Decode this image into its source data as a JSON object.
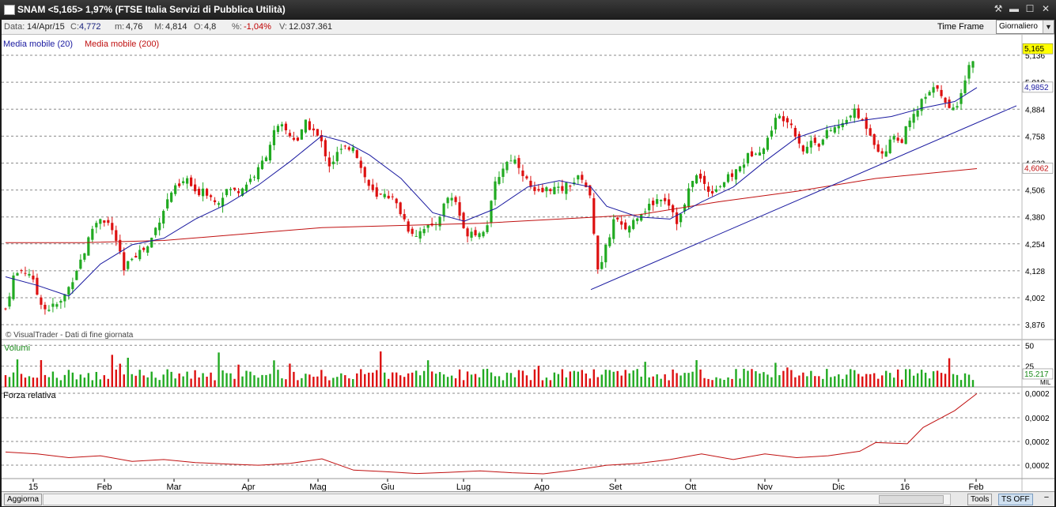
{
  "window": {
    "title": "SNAM <5,165> 1,97%  (FTSE Italia Servizi di Pubblica Utilità)",
    "buttons": {
      "tools": "⚒",
      "minimize": "▬",
      "maximize": "☐",
      "close": "✕"
    }
  },
  "info": {
    "data_label": "Data:",
    "data_value": "14/Apr/15",
    "c_label": "C:",
    "c_value": "4,772",
    "m_label": "m:",
    "m_value": "4,76",
    "M_label": "M:",
    "M_value": "4,814",
    "o_label": "O:",
    "o_value": "4,8",
    "pct_label": "%:",
    "pct_value": "-1,04%",
    "v_label": "V:",
    "v_value": "12.037.361",
    "timeframe_label": "Time Frame",
    "timeframe_value": "Giornaliero"
  },
  "legend": {
    "ma20": "Media mobile (20)",
    "ma200": "Media mobile (200)",
    "credit": "© VisualTrader - Dati di fine giornata"
  },
  "panels": {
    "volume_title": "Volumi",
    "rs_title": "Forza relativa"
  },
  "badges": {
    "last": "5,165",
    "ma20": "4,9852",
    "ma200": "4,6062",
    "vol": "15.217",
    "vol_unit": "MIL"
  },
  "bottom": {
    "refresh": "Aggiorna",
    "tools": "Tools",
    "ts": "TS OFF",
    "minus": "−"
  },
  "colors": {
    "up": "#22aa22",
    "down": "#dd1111",
    "ma20": "#1a1aa0",
    "ma200": "#c01010",
    "trend": "#1a1aa0",
    "rs": "#c01010"
  },
  "chart_data": {
    "type": "candlestick",
    "price_axis": {
      "ticks": [
        "5,136",
        "5,010",
        "4,884",
        "4,758",
        "4,632",
        "4,506",
        "4,380",
        "4,254",
        "4,128",
        "4,002",
        "3,876"
      ],
      "range": [
        3.81,
        5.21
      ]
    },
    "volume_axis": {
      "ticks": [
        "50",
        "25"
      ]
    },
    "rs_axis": {
      "ticks": [
        "0,0002",
        "0,0002",
        "0,0002",
        "0,0002"
      ]
    },
    "x_labels": [
      "15",
      "Feb",
      "Mar",
      "Apr",
      "Mag",
      "Giu",
      "Lug",
      "Ago",
      "Set",
      "Ott",
      "Nov",
      "Dic",
      "16",
      "Feb"
    ],
    "series": {
      "price_close": [
        [
          0,
          3.95
        ],
        [
          10,
          4.1
        ],
        [
          20,
          4.13
        ],
        [
          30,
          4.12
        ],
        [
          40,
          4.02
        ],
        [
          50,
          3.95
        ],
        [
          60,
          3.96
        ],
        [
          70,
          3.98
        ],
        [
          80,
          4.05
        ],
        [
          90,
          4.14
        ],
        [
          100,
          4.22
        ],
        [
          110,
          4.33
        ],
        [
          120,
          4.38
        ],
        [
          130,
          4.35
        ],
        [
          140,
          4.27
        ],
        [
          150,
          4.12
        ],
        [
          160,
          4.2
        ],
        [
          170,
          4.22
        ],
        [
          180,
          4.24
        ],
        [
          190,
          4.33
        ],
        [
          200,
          4.42
        ],
        [
          210,
          4.5
        ],
        [
          220,
          4.52
        ],
        [
          230,
          4.56
        ],
        [
          240,
          4.48
        ],
        [
          250,
          4.52
        ],
        [
          260,
          4.47
        ],
        [
          270,
          4.46
        ],
        [
          280,
          4.51
        ],
        [
          290,
          4.5
        ],
        [
          300,
          4.52
        ],
        [
          310,
          4.56
        ],
        [
          320,
          4.6
        ],
        [
          330,
          4.68
        ],
        [
          340,
          4.78
        ],
        [
          350,
          4.8
        ],
        [
          360,
          4.76
        ],
        [
          370,
          4.74
        ],
        [
          380,
          4.82
        ],
        [
          390,
          4.78
        ],
        [
          400,
          4.72
        ],
        [
          410,
          4.62
        ],
        [
          420,
          4.68
        ],
        [
          430,
          4.7
        ],
        [
          440,
          4.72
        ],
        [
          450,
          4.6
        ],
        [
          460,
          4.52
        ],
        [
          470,
          4.46
        ],
        [
          480,
          4.5
        ],
        [
          490,
          4.46
        ],
        [
          500,
          4.4
        ],
        [
          510,
          4.32
        ],
        [
          520,
          4.3
        ],
        [
          530,
          4.34
        ],
        [
          540,
          4.32
        ],
        [
          550,
          4.4
        ],
        [
          560,
          4.48
        ],
        [
          570,
          4.45
        ],
        [
          580,
          4.3
        ],
        [
          590,
          4.32
        ],
        [
          600,
          4.3
        ],
        [
          610,
          4.36
        ],
        [
          620,
          4.55
        ],
        [
          630,
          4.62
        ],
        [
          640,
          4.66
        ],
        [
          650,
          4.62
        ],
        [
          660,
          4.54
        ],
        [
          670,
          4.48
        ],
        [
          680,
          4.5
        ],
        [
          690,
          4.52
        ],
        [
          700,
          4.5
        ],
        [
          710,
          4.53
        ],
        [
          720,
          4.55
        ],
        [
          730,
          4.57
        ],
        [
          740,
          4.45
        ],
        [
          750,
          4.1
        ],
        [
          760,
          4.25
        ],
        [
          770,
          4.38
        ],
        [
          780,
          4.32
        ],
        [
          790,
          4.34
        ],
        [
          800,
          4.4
        ],
        [
          810,
          4.42
        ],
        [
          820,
          4.45
        ],
        [
          830,
          4.48
        ],
        [
          840,
          4.44
        ],
        [
          850,
          4.35
        ],
        [
          860,
          4.45
        ],
        [
          870,
          4.58
        ],
        [
          880,
          4.55
        ],
        [
          890,
          4.5
        ],
        [
          900,
          4.52
        ],
        [
          910,
          4.55
        ],
        [
          920,
          4.58
        ],
        [
          930,
          4.62
        ],
        [
          940,
          4.67
        ],
        [
          950,
          4.7
        ],
        [
          960,
          4.7
        ],
        [
          970,
          4.82
        ],
        [
          980,
          4.85
        ],
        [
          990,
          4.84
        ],
        [
          1000,
          4.76
        ],
        [
          1010,
          4.68
        ],
        [
          1020,
          4.75
        ],
        [
          1030,
          4.72
        ],
        [
          1040,
          4.78
        ],
        [
          1050,
          4.8
        ],
        [
          1060,
          4.81
        ],
        [
          1070,
          4.88
        ],
        [
          1080,
          4.84
        ],
        [
          1090,
          4.8
        ],
        [
          1100,
          4.72
        ],
        [
          1110,
          4.65
        ],
        [
          1120,
          4.78
        ],
        [
          1130,
          4.72
        ],
        [
          1140,
          4.8
        ],
        [
          1150,
          4.86
        ],
        [
          1160,
          4.93
        ],
        [
          1170,
          4.96
        ],
        [
          1180,
          5.0
        ],
        [
          1190,
          4.88
        ],
        [
          1200,
          4.88
        ],
        [
          1210,
          5.0
        ],
        [
          1220,
          5.1
        ],
        [
          1228,
          5.165
        ]
      ],
      "ma20": [
        [
          0,
          4.1
        ],
        [
          40,
          4.06
        ],
        [
          80,
          4.01
        ],
        [
          120,
          4.16
        ],
        [
          160,
          4.25
        ],
        [
          200,
          4.28
        ],
        [
          240,
          4.37
        ],
        [
          280,
          4.44
        ],
        [
          320,
          4.53
        ],
        [
          360,
          4.64
        ],
        [
          400,
          4.76
        ],
        [
          430,
          4.73
        ],
        [
          460,
          4.67
        ],
        [
          500,
          4.56
        ],
        [
          540,
          4.4
        ],
        [
          580,
          4.36
        ],
        [
          620,
          4.42
        ],
        [
          660,
          4.52
        ],
        [
          700,
          4.55
        ],
        [
          740,
          4.52
        ],
        [
          760,
          4.43
        ],
        [
          800,
          4.38
        ],
        [
          840,
          4.37
        ],
        [
          880,
          4.45
        ],
        [
          920,
          4.52
        ],
        [
          960,
          4.64
        ],
        [
          1000,
          4.75
        ],
        [
          1040,
          4.8
        ],
        [
          1080,
          4.83
        ],
        [
          1120,
          4.85
        ],
        [
          1160,
          4.89
        ],
        [
          1200,
          4.92
        ],
        [
          1228,
          4.985
        ]
      ],
      "ma200": [
        [
          0,
          4.26
        ],
        [
          100,
          4.26
        ],
        [
          200,
          4.27
        ],
        [
          300,
          4.3
        ],
        [
          400,
          4.33
        ],
        [
          500,
          4.34
        ],
        [
          600,
          4.35
        ],
        [
          700,
          4.37
        ],
        [
          800,
          4.39
        ],
        [
          900,
          4.45
        ],
        [
          1000,
          4.5
        ],
        [
          1100,
          4.56
        ],
        [
          1228,
          4.606
        ]
      ],
      "trend_line": [
        [
          740,
          4.04
        ],
        [
          1278,
          4.9
        ]
      ],
      "relative_strength_pct": [
        [
          0,
          0.6
        ],
        [
          40,
          0.55
        ],
        [
          80,
          0.45
        ],
        [
          120,
          0.5
        ],
        [
          160,
          0.35
        ],
        [
          200,
          0.4
        ],
        [
          240,
          0.32
        ],
        [
          280,
          0.28
        ],
        [
          320,
          0.25
        ],
        [
          360,
          0.3
        ],
        [
          400,
          0.42
        ],
        [
          440,
          0.12
        ],
        [
          480,
          0.08
        ],
        [
          520,
          0.03
        ],
        [
          560,
          0.06
        ],
        [
          600,
          0.1
        ],
        [
          640,
          0.05
        ],
        [
          680,
          0.02
        ],
        [
          720,
          0.12
        ],
        [
          760,
          0.25
        ],
        [
          800,
          0.3
        ],
        [
          840,
          0.4
        ],
        [
          880,
          0.55
        ],
        [
          920,
          0.4
        ],
        [
          960,
          0.55
        ],
        [
          1000,
          0.45
        ],
        [
          1040,
          0.5
        ],
        [
          1080,
          0.62
        ],
        [
          1100,
          0.85
        ],
        [
          1140,
          0.82
        ],
        [
          1160,
          1.25
        ],
        [
          1200,
          1.7
        ],
        [
          1228,
          2.15
        ]
      ]
    }
  }
}
